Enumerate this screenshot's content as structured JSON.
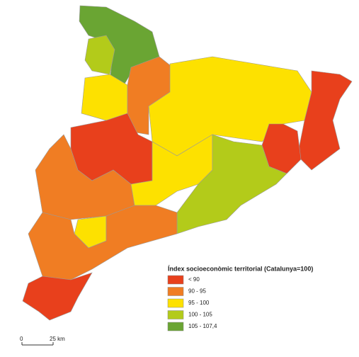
{
  "legend": {
    "title": "Índex socioeconòmic territorial (Catalunya=100)",
    "items": [
      {
        "label": "< 90",
        "color": "#e8401c"
      },
      {
        "label": "90 - 95",
        "color": "#f07d23"
      },
      {
        "label": "95 - 100",
        "color": "#fde100"
      },
      {
        "label": "100 - 105",
        "color": "#b3cb1a"
      },
      {
        "label": "105 - 107,4",
        "color": "#6aa533"
      }
    ]
  },
  "scale_bar": {
    "labels": [
      "0",
      "25 km"
    ]
  }
}
